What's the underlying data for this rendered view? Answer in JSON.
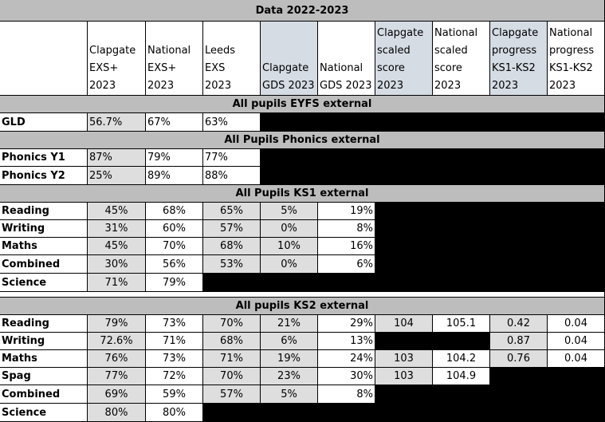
{
  "title": "Data 2022-2023",
  "headers": [
    [
      "Clapgate",
      "EXS+",
      "2023"
    ],
    [
      "National",
      "EXS+",
      "2023"
    ],
    [
      "Leeds",
      "EXS",
      "2023"
    ],
    [
      "Clapgate",
      "GDS 2023"
    ],
    [
      "National",
      "GDS 2023"
    ],
    [
      "Clapgate",
      "scaled",
      "score",
      "2023"
    ],
    [
      "National",
      "scaled",
      "score",
      "2023"
    ],
    [
      "Clapgate",
      "progress",
      "KS1-KS2",
      "2023"
    ],
    [
      "National",
      "progress",
      "KS1-KS2",
      "2023"
    ]
  ],
  "sections": [
    {
      "band": "All pupils EYFS external",
      "rows": [
        {
          "label": "GLD",
          "values": [
            "56.7%",
            "67%",
            "63%"
          ]
        }
      ]
    },
    {
      "band": "All Pupils Phonics external",
      "rows": [
        {
          "label": "Phonics Y1",
          "values": [
            "87%",
            "79%",
            "77%"
          ]
        },
        {
          "label": "Phonics Y2",
          "values": [
            "25%",
            "89%",
            "88%"
          ]
        }
      ]
    },
    {
      "band": "All Pupils KS1 external",
      "rows": [
        {
          "label": "Reading",
          "values": [
            "45%",
            "68%",
            "65%",
            "5%",
            "19%"
          ]
        },
        {
          "label": "Writing",
          "values": [
            "31%",
            "60%",
            "57%",
            "0%",
            "8%"
          ]
        },
        {
          "label": "Maths",
          "values": [
            "45%",
            "70%",
            "68%",
            "10%",
            "16%"
          ]
        },
        {
          "label": "Combined",
          "values": [
            "30%",
            "56%",
            "53%",
            "0%",
            "6%"
          ]
        },
        {
          "label": "Science",
          "values": [
            "71%",
            "79%"
          ]
        }
      ]
    },
    {
      "band": "All pupils KS2 external",
      "rows": [
        {
          "label": "Reading",
          "values": [
            "79%",
            "73%",
            "70%",
            "21%",
            "29%",
            "104",
            "105.1",
            "0.42",
            "0.04"
          ]
        },
        {
          "label": "Writing",
          "values": [
            "72.6%",
            "71%",
            "68%",
            "6%",
            "13%",
            "",
            "",
            "0.87",
            "0.04"
          ]
        },
        {
          "label": "Maths",
          "values": [
            "76%",
            "73%",
            "71%",
            "19%",
            "24%",
            "103",
            "104.2",
            "0.76",
            "0.04"
          ]
        },
        {
          "label": "Spag",
          "values": [
            "77%",
            "72%",
            "70%",
            "23%",
            "30%",
            "103",
            "104.9"
          ]
        },
        {
          "label": "Combined",
          "values": [
            "69%",
            "59%",
            "57%",
            "5%",
            "8%"
          ]
        },
        {
          "label": "Science",
          "values": [
            "80%",
            "80%"
          ]
        }
      ]
    }
  ]
}
